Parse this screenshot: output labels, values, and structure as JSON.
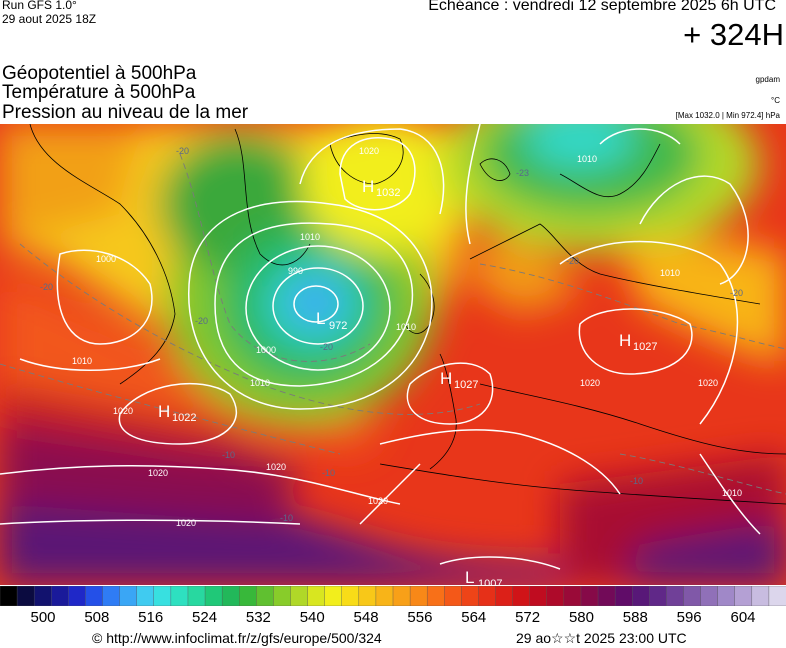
{
  "header": {
    "run_label": "Run GFS 1.0°",
    "run_date": "29 aout 2025 18Z",
    "echeance": "Echéance : vendredi 12 septembre 2025 6h UTC",
    "lead_time": "+ 324H"
  },
  "parameters": [
    {
      "label": "Géopotentiel à 500hPa",
      "unit": "gpdam"
    },
    {
      "label": "Température à 500hPa",
      "unit": "°C"
    },
    {
      "label": "Pression au niveau de la mer",
      "unit": "[Max 1032.0 | Min 972.4] hPa"
    }
  ],
  "map": {
    "pressure_centers": [
      {
        "type": "H",
        "value": "1032"
      },
      {
        "type": "L",
        "value": "972"
      },
      {
        "type": "H",
        "value": "1027"
      },
      {
        "type": "H",
        "value": "1027"
      },
      {
        "type": "H",
        "value": "1022"
      },
      {
        "type": "L",
        "value": "1007"
      }
    ],
    "isobar_labels": [
      "1020",
      "1010",
      "990",
      "1000",
      "1010",
      "1010",
      "1020",
      "1020",
      "1020",
      "1020",
      "1010",
      "1000",
      "1010",
      "1020",
      "1020",
      "1010",
      "1010",
      "1020"
    ],
    "temperature_labels": [
      "-20",
      "-20",
      "-23",
      "-20",
      "-20",
      "-20",
      "-10",
      "-10",
      "-10",
      "-20",
      "-10"
    ]
  },
  "colorbar": {
    "colors": [
      "#000000",
      "#0b0b40",
      "#12126e",
      "#1a1a9a",
      "#1f28c8",
      "#2450e8",
      "#2f7cf5",
      "#3aa6f5",
      "#40cbf0",
      "#38e0e0",
      "#2ee0c0",
      "#28d8a0",
      "#20c878",
      "#22b85a",
      "#38b83a",
      "#60c030",
      "#88cc2a",
      "#b0d828",
      "#d8e620",
      "#f2ee1c",
      "#f8dc18",
      "#f8c818",
      "#f8b418",
      "#f8a018",
      "#f88818",
      "#f87018",
      "#f45818",
      "#ee4418",
      "#e63018",
      "#dc2018",
      "#d01418",
      "#c00c20",
      "#ae0a2a",
      "#9a0a38",
      "#860a48",
      "#720a58",
      "#600c68",
      "#581878",
      "#602888",
      "#704098",
      "#8058a8",
      "#9070b8",
      "#a088c8",
      "#b4a0d4",
      "#c8bce0",
      "#dcd6ec"
    ],
    "ticks": [
      "500",
      "508",
      "516",
      "524",
      "532",
      "540",
      "548",
      "556",
      "564",
      "572",
      "580",
      "588",
      "596",
      "604"
    ]
  },
  "footer": {
    "credit": "© http://www.infoclimat.fr/z/gfs/europe/500/324",
    "run_time": "29 ao☆☆t 2025 23:00 UTC"
  }
}
